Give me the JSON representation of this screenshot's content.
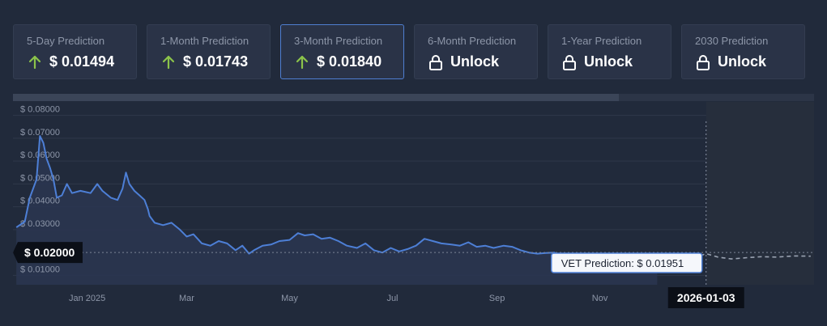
{
  "cards": [
    {
      "title": "5-Day Prediction",
      "value": "$ 0.01494",
      "icon": "arrow-up-icon",
      "locked": false
    },
    {
      "title": "1-Month Prediction",
      "value": "$ 0.01743",
      "icon": "arrow-up-icon",
      "locked": false
    },
    {
      "title": "3-Month Prediction",
      "value": "$ 0.01840",
      "icon": "arrow-up-icon",
      "locked": false,
      "active": true
    },
    {
      "title": "6-Month Prediction",
      "value": "Unlock",
      "icon": "lock-icon",
      "locked": true
    },
    {
      "title": "1-Year Prediction",
      "value": "Unlock",
      "icon": "lock-icon",
      "locked": true
    },
    {
      "title": "2030 Prediction",
      "value": "Unlock",
      "icon": "lock-icon",
      "locked": true
    }
  ],
  "colors": {
    "background": "#212a3b",
    "card": "#2a3347",
    "active_border": "#4f7ed0",
    "up_arrow": "#8bc34a",
    "line": "#4d7fd6",
    "area": "#2a3550",
    "prediction_line": "#9aa3b2",
    "scrollbar": "#3b4558"
  },
  "chart_data": {
    "type": "line",
    "y_ticks": [
      "$ 0.08000",
      "$ 0.07000",
      "$ 0.06000",
      "$ 0.05000",
      "$ 0.04000",
      "$ 0.03000",
      "$ 0.01000"
    ],
    "x_ticks": [
      "Jan 2025",
      "Mar",
      "May",
      "Jul",
      "Sep",
      "Nov"
    ],
    "ylim": [
      0.0059,
      0.0859
    ],
    "series": [
      {
        "points": [
          [
            "2024-11-20",
            0.031
          ],
          [
            "2024-11-25",
            0.0335
          ],
          [
            "2024-11-28",
            0.044
          ],
          [
            "2024-12-02",
            0.052
          ],
          [
            "2024-12-04",
            0.071
          ],
          [
            "2024-12-06",
            0.068
          ],
          [
            "2024-12-08",
            0.061
          ],
          [
            "2024-12-10",
            0.057
          ],
          [
            "2024-12-12",
            0.052
          ],
          [
            "2024-12-14",
            0.044
          ],
          [
            "2024-12-17",
            0.045
          ],
          [
            "2024-12-20",
            0.05
          ],
          [
            "2024-12-23",
            0.046
          ],
          [
            "2024-12-28",
            0.047
          ],
          [
            "2025-01-03",
            0.046
          ],
          [
            "2025-01-07",
            0.05
          ],
          [
            "2025-01-10",
            0.047
          ],
          [
            "2025-01-15",
            0.044
          ],
          [
            "2025-01-19",
            0.043
          ],
          [
            "2025-01-22",
            0.048
          ],
          [
            "2025-01-24",
            0.055
          ],
          [
            "2025-01-26",
            0.05
          ],
          [
            "2025-01-29",
            0.047
          ],
          [
            "2025-02-01",
            0.045
          ],
          [
            "2025-02-04",
            0.043
          ],
          [
            "2025-02-06",
            0.039
          ],
          [
            "2025-02-07",
            0.036
          ],
          [
            "2025-02-10",
            0.033
          ],
          [
            "2025-02-15",
            0.032
          ],
          [
            "2025-02-20",
            0.033
          ],
          [
            "2025-02-25",
            0.03
          ],
          [
            "2025-03-01",
            0.027
          ],
          [
            "2025-03-05",
            0.028
          ],
          [
            "2025-03-10",
            0.024
          ],
          [
            "2025-03-15",
            0.023
          ],
          [
            "2025-03-20",
            0.025
          ],
          [
            "2025-03-25",
            0.024
          ],
          [
            "2025-03-30",
            0.021
          ],
          [
            "2025-04-03",
            0.023
          ],
          [
            "2025-04-07",
            0.0195
          ],
          [
            "2025-04-10",
            0.021
          ],
          [
            "2025-04-15",
            0.023
          ],
          [
            "2025-04-20",
            0.0235
          ],
          [
            "2025-04-25",
            0.025
          ],
          [
            "2025-05-01",
            0.0255
          ],
          [
            "2025-05-06",
            0.0285
          ],
          [
            "2025-05-10",
            0.0275
          ],
          [
            "2025-05-15",
            0.028
          ],
          [
            "2025-05-20",
            0.026
          ],
          [
            "2025-05-25",
            0.0265
          ],
          [
            "2025-05-30",
            0.025
          ],
          [
            "2025-06-04",
            0.023
          ],
          [
            "2025-06-10",
            0.022
          ],
          [
            "2025-06-15",
            0.024
          ],
          [
            "2025-06-20",
            0.021
          ],
          [
            "2025-06-25",
            0.02
          ],
          [
            "2025-06-30",
            0.022
          ],
          [
            "2025-07-05",
            0.0205
          ],
          [
            "2025-07-10",
            0.0215
          ],
          [
            "2025-07-15",
            0.023
          ],
          [
            "2025-07-20",
            0.026
          ],
          [
            "2025-07-25",
            0.025
          ],
          [
            "2025-07-30",
            0.024
          ],
          [
            "2025-08-05",
            0.0235
          ],
          [
            "2025-08-10",
            0.023
          ],
          [
            "2025-08-15",
            0.0245
          ],
          [
            "2025-08-20",
            0.0225
          ],
          [
            "2025-08-25",
            0.023
          ],
          [
            "2025-08-30",
            0.022
          ],
          [
            "2025-09-05",
            0.023
          ],
          [
            "2025-09-10",
            0.0225
          ],
          [
            "2025-09-15",
            0.021
          ],
          [
            "2025-09-20",
            0.02
          ],
          [
            "2025-09-25",
            0.0195
          ],
          [
            "2025-09-30",
            0.0198
          ],
          [
            "2025-10-05",
            0.02
          ],
          [
            "2025-10-10",
            0.017
          ],
          [
            "2025-10-15",
            0.0168
          ],
          [
            "2025-10-20",
            0.0165
          ],
          [
            "2025-10-25",
            0.0162
          ],
          [
            "2025-10-30",
            0.0165
          ],
          [
            "2025-11-05",
            0.016
          ],
          [
            "2025-11-10",
            0.0163
          ],
          [
            "2025-11-15",
            0.0158
          ],
          [
            "2025-11-20",
            0.016
          ],
          [
            "2025-11-25",
            0.0162
          ],
          [
            "2025-12-01",
            0.0164
          ],
          [
            "2025-12-05",
            0.0166
          ]
        ]
      },
      {
        "points": [
          [
            "2025-12-05",
            0.0166
          ],
          [
            "2025-12-15",
            0.0168
          ],
          [
            "2025-12-25",
            0.0172
          ],
          [
            "2026-01-03",
            0.0195
          ],
          [
            "2026-01-10",
            0.018
          ],
          [
            "2026-01-18",
            0.0172
          ],
          [
            "2026-01-28",
            0.0178
          ],
          [
            "2026-02-05",
            0.0182
          ],
          [
            "2026-02-14",
            0.018
          ],
          [
            "2026-02-24",
            0.0185
          ],
          [
            "2026-03-06",
            0.0184
          ]
        ]
      }
    ],
    "reference_value": 0.02,
    "reference_label": "$ 0.02000",
    "crosshair_date": "2026-01-03",
    "crosshair_label": "2026-01-03",
    "tooltip_label": "VET Prediction: $ 0.01951"
  }
}
